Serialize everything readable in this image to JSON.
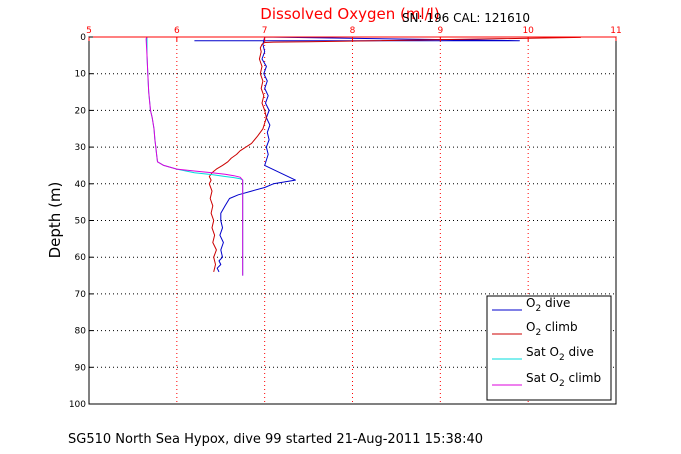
{
  "chart_data": {
    "type": "line",
    "title": "Dissolved Oxygen (ml/l)",
    "sn_label": "SN: 196  CAL: 121610",
    "xlabel": "",
    "ylabel": "Depth (m)",
    "caption": "SG510 North Sea Hypox, dive 99 started 21-Aug-2011 15:38:40",
    "xlim": [
      5,
      11
    ],
    "ylim": [
      0,
      100
    ],
    "y_reversed": true,
    "x_axis_position": "top",
    "x_ticks": [
      5,
      6,
      7,
      8,
      9,
      10,
      11
    ],
    "y_ticks": [
      0,
      10,
      20,
      30,
      40,
      50,
      60,
      70,
      80,
      90,
      100
    ],
    "grid": true,
    "legend_position": "bottom-right",
    "series": [
      {
        "name": "O2 dive",
        "legend_base": "O",
        "legend_sub": "2",
        "legend_suffix": " dive",
        "color": "#0000cc",
        "x": [
          6.2,
          9.9,
          7.0,
          6.98,
          7.0,
          6.97,
          7.02,
          6.99,
          7.03,
          7.0,
          7.04,
          7.01,
          7.05,
          7.02,
          7.06,
          7.03,
          7.05,
          7.02,
          7.04,
          7.0,
          7.35,
          7.1,
          7.0,
          6.85,
          6.7,
          6.6,
          6.55,
          6.5,
          6.5,
          6.52,
          6.49,
          6.53,
          6.5,
          6.52,
          6.48,
          6.5,
          6.46,
          6.48
        ],
        "y": [
          1,
          1,
          0,
          2,
          4,
          6,
          8,
          10,
          12,
          14,
          16,
          18,
          20,
          22,
          24,
          26,
          28,
          30,
          32,
          35,
          39,
          40,
          41,
          42,
          43,
          44,
          46,
          48,
          50,
          52,
          54,
          56,
          58,
          60,
          61,
          62,
          63,
          64
        ]
      },
      {
        "name": "O2 climb",
        "legend_base": "O",
        "legend_sub": "2",
        "legend_suffix": " climb",
        "color": "#cc0000",
        "x": [
          6.42,
          6.44,
          6.42,
          6.45,
          6.41,
          6.43,
          6.4,
          6.42,
          6.39,
          6.41,
          6.38,
          6.4,
          6.37,
          6.39,
          6.37,
          6.4,
          6.45,
          6.52,
          6.58,
          6.62,
          6.68,
          6.72,
          6.85,
          6.92,
          6.98,
          7.02,
          7.0,
          6.97,
          6.99,
          6.96,
          6.98,
          6.95,
          6.97,
          6.94,
          6.96,
          6.95,
          6.97,
          7.0,
          7.1,
          7.5,
          10.6
        ],
        "y": [
          64,
          62,
          60,
          58,
          56,
          54,
          52,
          50,
          48,
          46,
          44,
          42,
          40,
          39,
          38,
          37,
          36,
          35,
          34,
          33,
          32,
          31,
          29,
          27,
          25,
          22,
          20,
          18,
          16,
          14,
          12,
          10,
          8,
          6,
          4,
          3,
          2,
          1.5,
          1.4,
          1.3,
          0.1
        ]
      },
      {
        "name": "Sat O2 dive",
        "legend_base": "Sat O",
        "legend_sub": "2",
        "legend_suffix": " dive",
        "color": "#00dddd",
        "x": [
          5.66,
          5.66,
          5.67,
          5.68,
          5.7,
          5.72,
          5.74,
          5.75,
          5.76,
          5.77,
          5.78,
          5.85,
          6.0,
          6.2,
          6.4,
          6.55,
          6.65,
          6.72,
          6.75,
          6.75,
          6.75,
          6.75,
          6.75
        ],
        "y": [
          0,
          5,
          10,
          15,
          20,
          22,
          25,
          28,
          30,
          32,
          34,
          35,
          36,
          37,
          37.5,
          38,
          38.3,
          38.6,
          39,
          45,
          50,
          55,
          65
        ]
      },
      {
        "name": "Sat O2 climb",
        "legend_base": "Sat O",
        "legend_sub": "2",
        "legend_suffix": " climb",
        "color": "#dd00dd",
        "x": [
          6.75,
          6.75,
          6.75,
          6.75,
          6.75,
          6.72,
          6.65,
          6.55,
          6.4,
          6.2,
          6.0,
          5.85,
          5.78,
          5.77,
          5.76,
          5.75,
          5.74,
          5.72,
          5.7,
          5.68,
          5.67,
          5.66,
          5.65,
          5.66
        ],
        "y": [
          65,
          55,
          50,
          45,
          39,
          38.2,
          37.8,
          37.4,
          37,
          36.5,
          36,
          35,
          34,
          32,
          30,
          28,
          25,
          22,
          20,
          15,
          10,
          5,
          0.5,
          0
        ]
      }
    ]
  }
}
